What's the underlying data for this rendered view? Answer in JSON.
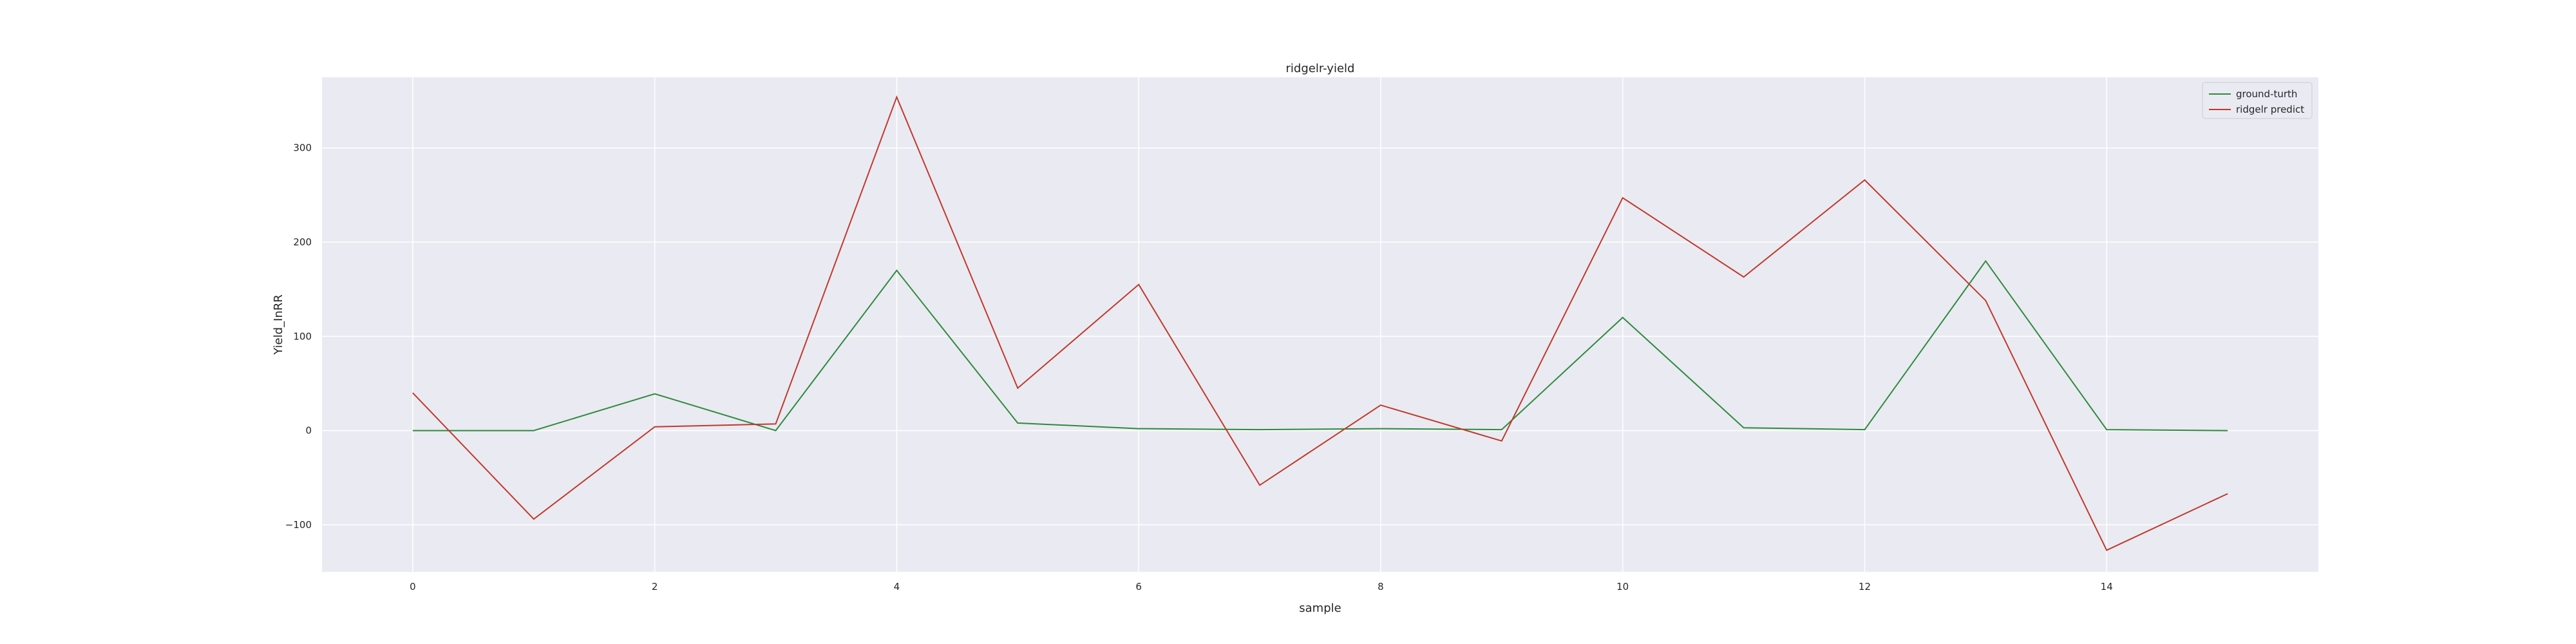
{
  "chart_data": {
    "type": "line",
    "title": "ridgelr-yield",
    "xlabel": "sample",
    "ylabel": "Yield_InRR",
    "x": [
      0,
      1,
      2,
      3,
      4,
      5,
      6,
      7,
      8,
      9,
      10,
      11,
      12,
      13,
      14,
      15
    ],
    "xlim": [
      -0.75,
      15.75
    ],
    "ylim": [
      -150,
      375
    ],
    "xticks": [
      0,
      2,
      4,
      6,
      8,
      10,
      12,
      14
    ],
    "yticks": [
      -100,
      0,
      100,
      200,
      300
    ],
    "ytick_labels": [
      "−100",
      "0",
      "100",
      "200",
      "300"
    ],
    "grid": true,
    "legend_position": "top-right",
    "series": [
      {
        "name": "ground-turth",
        "color": "#2e8b3c",
        "values": [
          0,
          0,
          39,
          0,
          170,
          8,
          2,
          1,
          2,
          1,
          120,
          3,
          1,
          180,
          1,
          0
        ]
      },
      {
        "name": "ridgelr predict",
        "color": "#c0392b",
        "values": [
          40,
          -94,
          4,
          7,
          354,
          45,
          155,
          -58,
          27,
          -11,
          247,
          163,
          266,
          138,
          -127,
          -67
        ]
      }
    ]
  },
  "colors": {
    "plot_background": "#eaeaf2",
    "grid": "#ffffff",
    "text": "#262626"
  }
}
